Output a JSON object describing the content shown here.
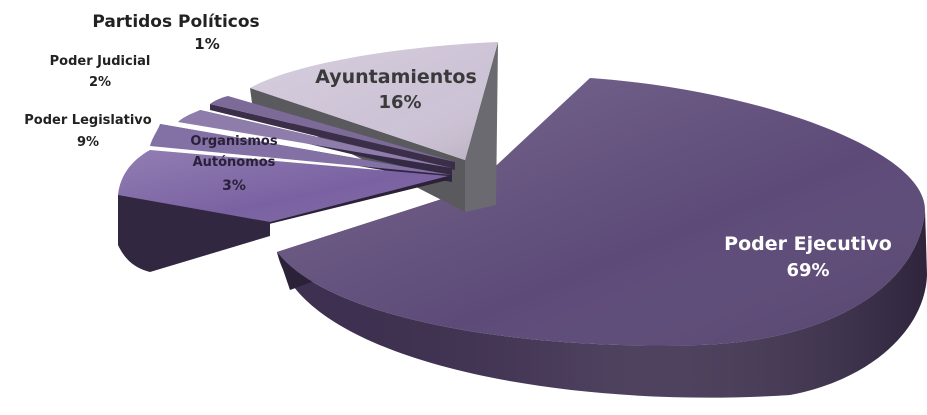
{
  "chart_data": {
    "type": "pie",
    "style": "3d-exploded",
    "slices": [
      {
        "label": "Poder Ejecutivo",
        "percent": "69%",
        "value": 69,
        "color": "#5d4a78"
      },
      {
        "label": "Ayuntamientos",
        "percent": "16%",
        "value": 16,
        "color": "#cdc3d6"
      },
      {
        "label": "Partidos Políticos",
        "percent": "1%",
        "value": 1,
        "color": "#7c6a98"
      },
      {
        "label": "Poder Judicial",
        "percent": "2%",
        "value": 2,
        "color": "#8e7cab"
      },
      {
        "label": "Organismos Autónomos",
        "percent": "3%",
        "value": 3,
        "color": "#8370a5"
      },
      {
        "label": "Poder Legislativo",
        "percent": "9%",
        "value": 9,
        "color": "#7a62a2"
      }
    ]
  }
}
